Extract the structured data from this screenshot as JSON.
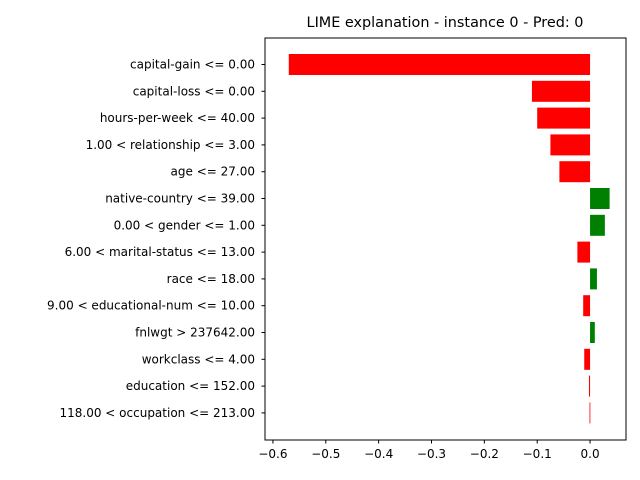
{
  "chart_data": {
    "type": "bar",
    "orientation": "horizontal",
    "title": "LIME explanation - instance 0 - Pred: 0",
    "xlabel": "",
    "ylabel": "",
    "xlim": [
      -0.615,
      0.068
    ],
    "xticks": [
      -0.6,
      -0.5,
      -0.4,
      -0.3,
      -0.2,
      -0.1,
      0.0
    ],
    "xtick_labels": [
      "−0.6",
      "−0.5",
      "−0.4",
      "−0.3",
      "−0.2",
      "−0.1",
      "0.0"
    ],
    "grid": false,
    "colors": {
      "negative": "#ff0000",
      "positive": "#008000"
    },
    "categories": [
      "capital-gain <= 0.00",
      "capital-loss <= 0.00",
      "hours-per-week <= 40.00",
      "1.00 < relationship <= 3.00",
      "age <= 27.00",
      "native-country <= 39.00",
      "0.00 < gender <= 1.00",
      "6.00 < marital-status <= 13.00",
      "race <= 18.00",
      "9.00 < educational-num <= 10.00",
      "fnlwgt > 237642.00",
      "workclass <= 4.00",
      "education <= 152.00",
      "118.00 < occupation <= 213.00"
    ],
    "values": [
      -0.57,
      -0.11,
      -0.1,
      -0.075,
      -0.058,
      0.037,
      0.028,
      -0.024,
      0.013,
      -0.013,
      0.009,
      -0.011,
      -0.002,
      -0.001
    ]
  }
}
